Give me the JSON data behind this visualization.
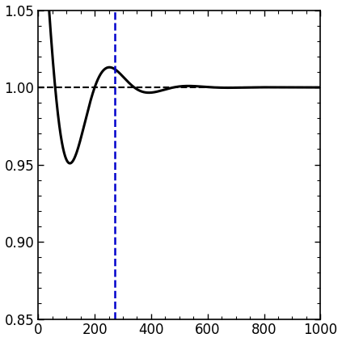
{
  "xlim": [
    0,
    1000
  ],
  "ylim": [
    0.85,
    1.05
  ],
  "xticks": [
    0,
    200,
    400,
    600,
    800,
    1000
  ],
  "yticks": [
    0.85,
    0.9,
    0.95,
    1.0,
    1.05
  ],
  "hline_y": 1.0,
  "hline_color": "#000000",
  "hline_style": "--",
  "hline_lw": 1.5,
  "vline_x": 270,
  "vline_color": "#0000cc",
  "vline_style": "--",
  "vline_lw": 1.8,
  "curve_color": "#000000",
  "curve_lw": 2.2,
  "background_color": "#ffffff",
  "tick_fontsize": 12,
  "figsize": [
    4.23,
    4.23
  ],
  "dpi": 100,
  "curve_omega": 0.01745,
  "curve_gamma": 0.0095,
  "curve_A": 0.155,
  "curve_phase": -1.5708
}
